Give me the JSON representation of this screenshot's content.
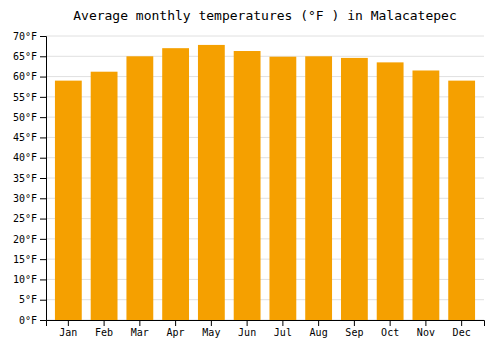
{
  "chart_data": {
    "type": "bar",
    "title": "Average monthly temperatures (°F ) in Malacatepec",
    "categories": [
      "Jan",
      "Feb",
      "Mar",
      "Apr",
      "May",
      "Jun",
      "Jul",
      "Aug",
      "Sep",
      "Oct",
      "Nov",
      "Dec"
    ],
    "values": [
      59.0,
      61.2,
      65.0,
      67.0,
      67.8,
      66.3,
      64.9,
      65.0,
      64.6,
      63.5,
      61.5,
      59.0
    ],
    "color": "#F5A000",
    "ylim": [
      0,
      70
    ],
    "yticks": [
      {
        "value": 0,
        "label": "0°F"
      },
      {
        "value": 5,
        "label": "5°F"
      },
      {
        "value": 10,
        "label": "10°F"
      },
      {
        "value": 15,
        "label": "15°F"
      },
      {
        "value": 20,
        "label": "20°F"
      },
      {
        "value": 25,
        "label": "25°F"
      },
      {
        "value": 30,
        "label": "30°F"
      },
      {
        "value": 35,
        "label": "35°F"
      },
      {
        "value": 40,
        "label": "40°F"
      },
      {
        "value": 45,
        "label": "45°F"
      },
      {
        "value": 50,
        "label": "50°F"
      },
      {
        "value": 55,
        "label": "55°F"
      },
      {
        "value": 60,
        "label": "60°F"
      },
      {
        "value": 65,
        "label": "65°F"
      },
      {
        "value": 70,
        "label": "70°F"
      }
    ],
    "grid": true
  }
}
